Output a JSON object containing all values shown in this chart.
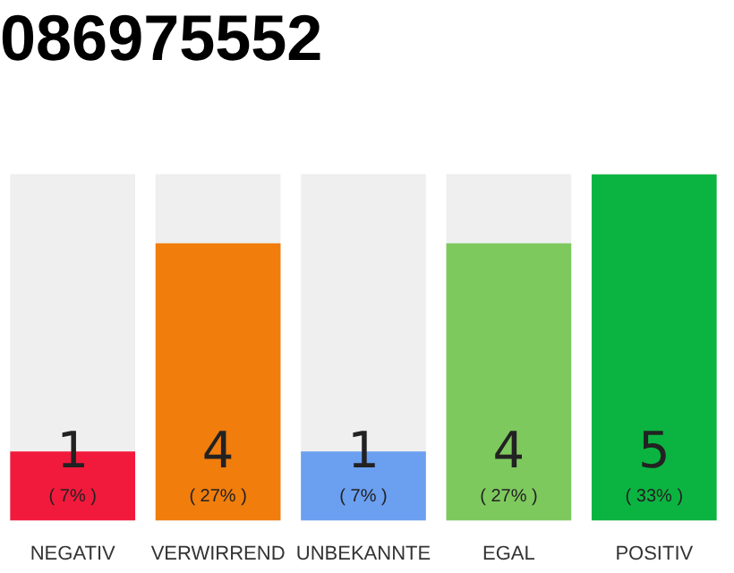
{
  "chart_data": {
    "type": "bar",
    "title": "086975552",
    "categories": [
      "NEGATIV",
      "VERWIRREND",
      "UNBEKANNTE",
      "EGAL",
      "POSITIV"
    ],
    "values": [
      1,
      4,
      1,
      4,
      5
    ],
    "colors": [
      "#f21a3c",
      "#f07d0c",
      "#6b9ff0",
      "#7ec95e",
      "#0bb441"
    ],
    "data_labels": true,
    "grid": false,
    "legend": false,
    "annotations": [
      "( 7% )",
      "( 27% )",
      "( 7% )",
      "( 27% )",
      "( 33% )"
    ]
  }
}
